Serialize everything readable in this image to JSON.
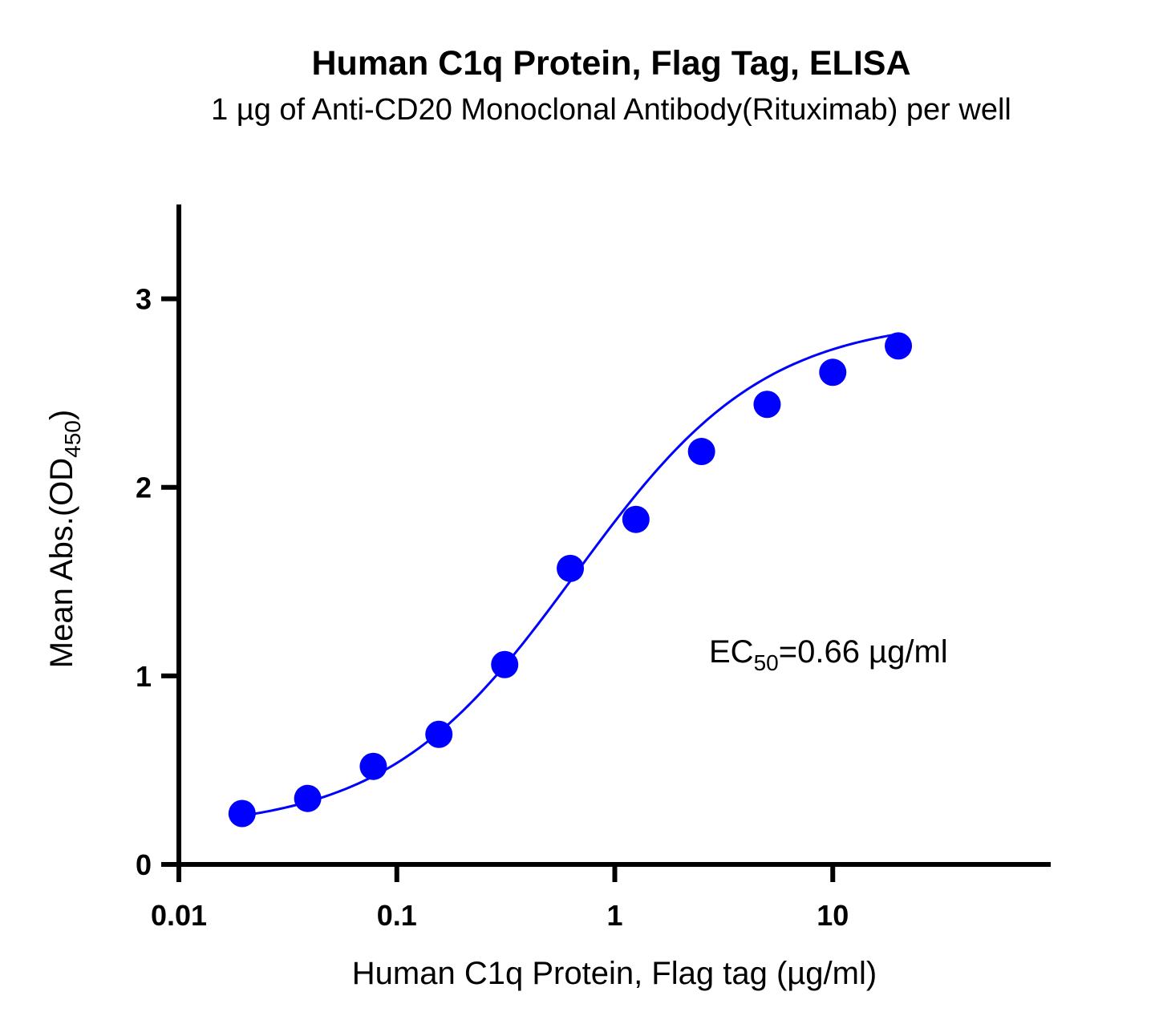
{
  "chart_data": {
    "type": "scatter",
    "title": "Human C1q Protein, Flag Tag, ELISA",
    "subtitle": "1 µg of Anti-CD20 Monoclonal Antibody(Rituximab) per well",
    "xlabel": "Human C1q Protein, Flag tag (µg/ml)",
    "ylabel_main": "Mean Abs.(OD",
    "ylabel_sub": "450",
    "ylabel_end": ")",
    "x_scale": "log",
    "xlim": [
      0.01,
      100
    ],
    "ylim": [
      0,
      3.5
    ],
    "x_ticks": [
      {
        "value": 0.01,
        "label": "0.01"
      },
      {
        "value": 0.1,
        "label": "0.1"
      },
      {
        "value": 1,
        "label": "1"
      },
      {
        "value": 10,
        "label": "10"
      }
    ],
    "y_ticks": [
      {
        "value": 0,
        "label": "0"
      },
      {
        "value": 1,
        "label": "1"
      },
      {
        "value": 2,
        "label": "2"
      },
      {
        "value": 3,
        "label": "3"
      }
    ],
    "grid": false,
    "series": [
      {
        "color": "#0000ff",
        "x": [
          0.0195,
          0.039,
          0.078,
          0.156,
          0.3125,
          0.625,
          1.25,
          2.5,
          5,
          10,
          20
        ],
        "y": [
          0.27,
          0.35,
          0.52,
          0.69,
          1.06,
          1.57,
          1.83,
          2.19,
          2.44,
          2.61,
          2.75
        ]
      }
    ],
    "annotation": {
      "prefix": "EC",
      "sub": "50",
      "suffix": "=0.66 µg/ml"
    },
    "fit_curve": {
      "bottom": 0.18,
      "top": 2.9,
      "ec50": 0.66,
      "hill": 1.0
    }
  }
}
